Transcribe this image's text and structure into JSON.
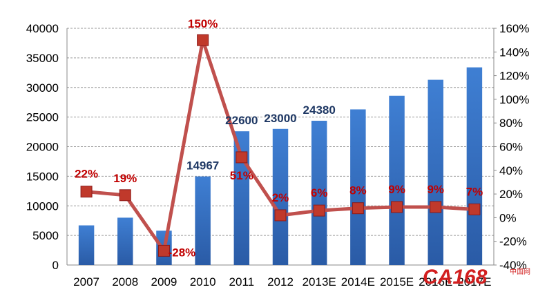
{
  "chart_data": {
    "type": "bar",
    "categories": [
      "2007",
      "2008",
      "2009",
      "2010",
      "2011",
      "2012",
      "2013E",
      "2014E",
      "2015E",
      "2016E",
      "2017E"
    ],
    "series": [
      {
        "type": "bar",
        "axis": "left",
        "values": [
          6700,
          8000,
          5800,
          14967,
          22600,
          23000,
          24380,
          26300,
          28600,
          31300,
          33400
        ],
        "data_labels": [
          "",
          "",
          "",
          "14967",
          "22600",
          "23000",
          "24380",
          "",
          "",
          "",
          ""
        ],
        "color": "#3a73c4"
      },
      {
        "type": "line",
        "axis": "right",
        "values": [
          22,
          19,
          -28,
          150,
          51,
          2,
          6,
          8,
          9,
          9,
          7
        ],
        "data_labels": [
          "22%",
          "19%",
          "-28%",
          "150%",
          "51%",
          "2%",
          "6%",
          "8%",
          "9%",
          "9%",
          "7%"
        ],
        "color": "#c0504d",
        "marker_color": "#c0392b"
      }
    ],
    "y_left": {
      "ticks": [
        "0",
        "5000",
        "10000",
        "15000",
        "20000",
        "25000",
        "30000",
        "35000",
        "40000"
      ],
      "lim": [
        0,
        40000
      ]
    },
    "y_right": {
      "ticks": [
        "-40%",
        "-20%",
        "0%",
        "20%",
        "40%",
        "60%",
        "80%",
        "100%",
        "120%",
        "140%",
        "160%"
      ],
      "lim": [
        -40,
        160
      ]
    },
    "grid": true,
    "grid_style": "dashed",
    "legend": "none"
  },
  "watermark": {
    "text": "CA168",
    "sub": "中国网"
  }
}
